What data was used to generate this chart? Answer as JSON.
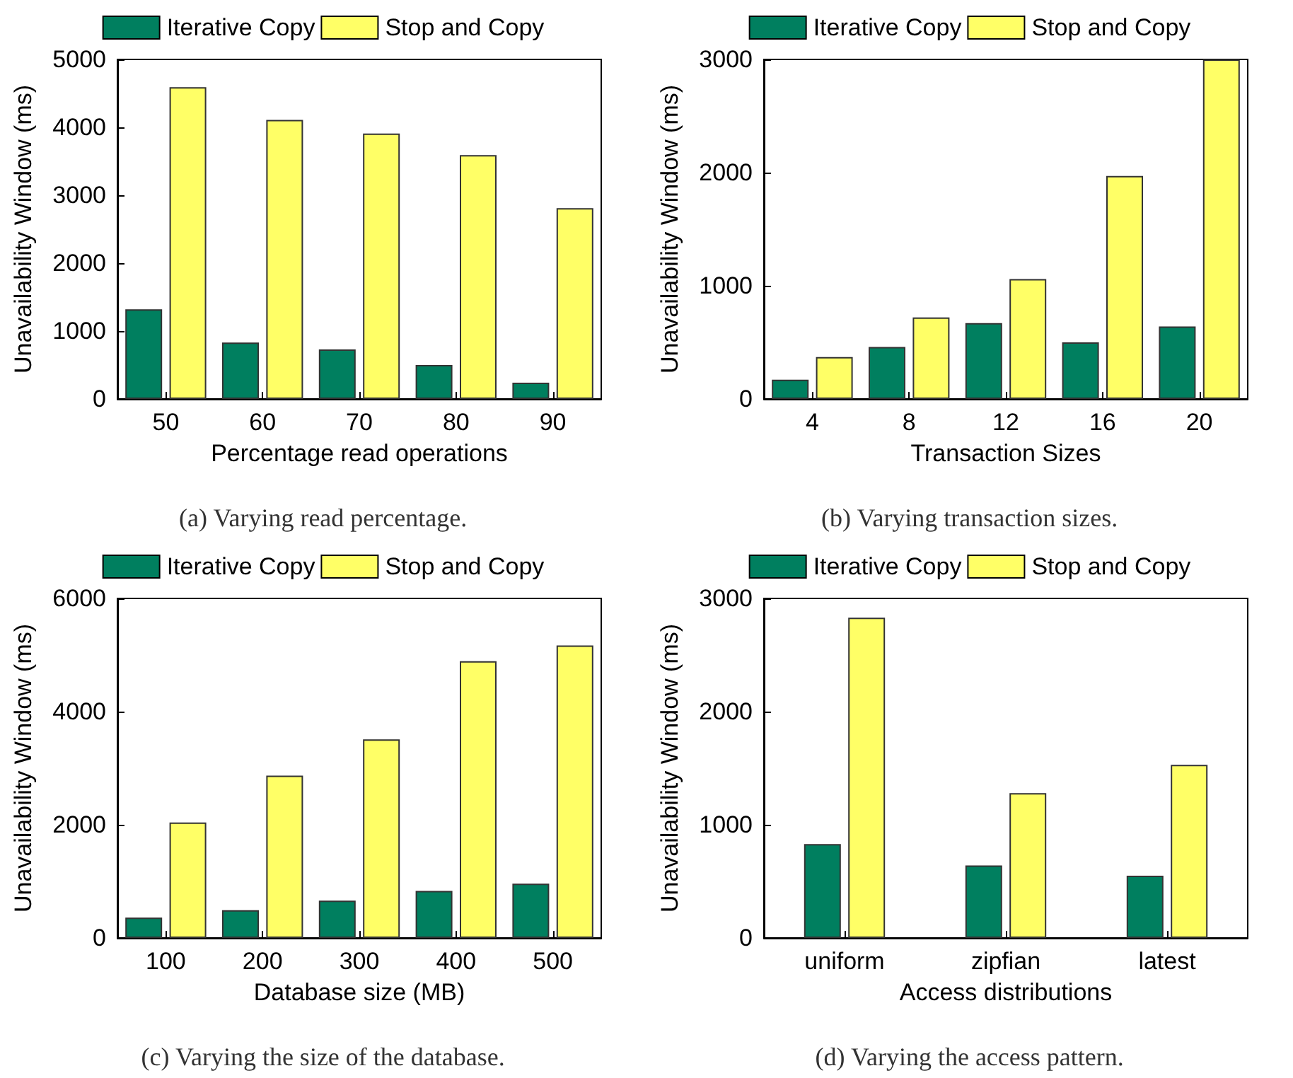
{
  "chart_data": [
    {
      "type": "bar",
      "categories": [
        "50",
        "60",
        "70",
        "80",
        "90"
      ],
      "xlabel": "Percentage read operations",
      "ylabel": "Unavailability Window (ms)",
      "ylim": [
        0,
        5000
      ],
      "yticks": [
        0,
        1000,
        2000,
        3000,
        4000,
        5000
      ],
      "legend": "top",
      "annotations": [
        "(a) Varying read percentage."
      ],
      "series": [
        {
          "name": "Iterative Copy",
          "color": "#007f5f",
          "values": [
            1320,
            830,
            730,
            500,
            240
          ]
        },
        {
          "name": "Stop and Copy",
          "color": "#ffff66",
          "values": [
            4590,
            4110,
            3910,
            3590,
            2810
          ]
        }
      ]
    },
    {
      "type": "bar",
      "categories": [
        "4",
        "8",
        "12",
        "16",
        "20"
      ],
      "xlabel": "Transaction Sizes",
      "ylabel": "Unavailability Window (ms)",
      "ylim": [
        0,
        3000
      ],
      "yticks": [
        0,
        1000,
        2000,
        3000
      ],
      "legend": "top",
      "annotations": [
        "(b) Varying transaction sizes."
      ],
      "series": [
        {
          "name": "Iterative Copy",
          "color": "#007f5f",
          "values": [
            170,
            460,
            670,
            500,
            640
          ]
        },
        {
          "name": "Stop and Copy",
          "color": "#ffff66",
          "values": [
            370,
            720,
            1060,
            1970,
            3000
          ]
        }
      ]
    },
    {
      "type": "bar",
      "categories": [
        "100",
        "200",
        "300",
        "400",
        "500"
      ],
      "xlabel": "Database size (MB)",
      "ylabel": "Unavailability Window (ms)",
      "ylim": [
        0,
        6000
      ],
      "yticks": [
        0,
        2000,
        4000,
        6000
      ],
      "legend": "top",
      "annotations": [
        "(c) Varying the size of the database."
      ],
      "series": [
        {
          "name": "Iterative Copy",
          "color": "#007f5f",
          "values": [
            360,
            490,
            660,
            830,
            960
          ]
        },
        {
          "name": "Stop and Copy",
          "color": "#ffff66",
          "values": [
            2040,
            2870,
            3510,
            4890,
            5170
          ]
        }
      ]
    },
    {
      "type": "bar",
      "categories": [
        "uniform",
        "zipfian",
        "latest"
      ],
      "xlabel": "Access distributions",
      "ylabel": "Unavailability Window (ms)",
      "ylim": [
        0,
        3000
      ],
      "yticks": [
        0,
        1000,
        2000,
        3000
      ],
      "legend": "top",
      "annotations": [
        "(d) Varying the access pattern."
      ],
      "series": [
        {
          "name": "Iterative Copy",
          "color": "#007f5f",
          "values": [
            830,
            640,
            550
          ]
        },
        {
          "name": "Stop and Copy",
          "color": "#ffff66",
          "values": [
            2830,
            1280,
            1530
          ]
        }
      ]
    }
  ]
}
